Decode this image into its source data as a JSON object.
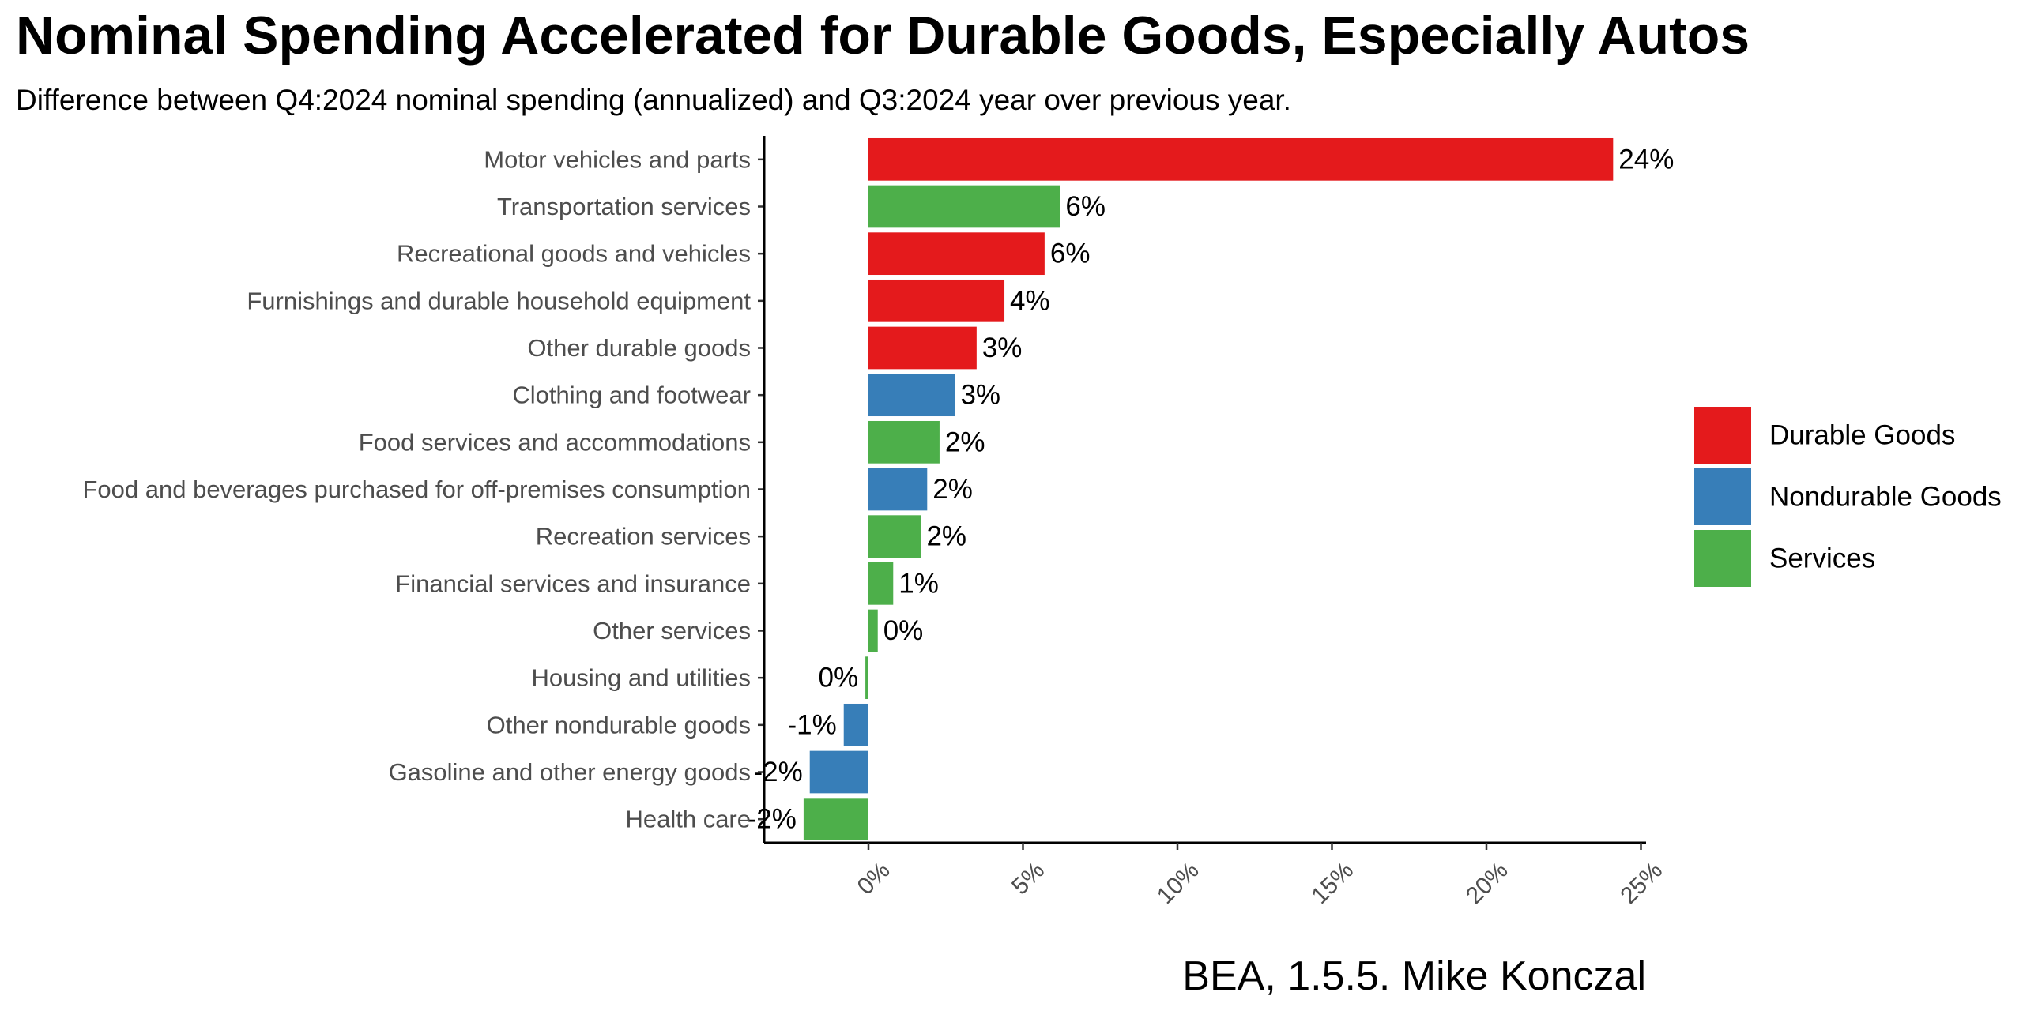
{
  "title": "Nominal Spending Accelerated for Durable Goods, Especially Autos",
  "subtitle": "Difference between Q4:2024 nominal spending (annualized) and Q3:2024 year over previous year.",
  "caption": "BEA, 1.5.5. Mike Konczal",
  "colors": {
    "Durable Goods": "#e41a1c",
    "Nondurable Goods": "#377eb8",
    "Services": "#4daf4a"
  },
  "legend": [
    "Durable Goods",
    "Nondurable Goods",
    "Services"
  ],
  "chart_data": {
    "type": "bar",
    "orientation": "horizontal",
    "categories": [
      "Motor vehicles and parts",
      "Transportation services",
      "Recreational goods and vehicles",
      "Furnishings and durable household equipment",
      "Other durable goods",
      "Clothing and footwear",
      "Food services and accommodations",
      "Food and beverages purchased for off-premises consumption",
      "Recreation services",
      "Financial services and insurance",
      "Other services",
      "Housing and utilities",
      "Other nondurable goods",
      "Gasoline and other energy goods",
      "Health care"
    ],
    "values": [
      24.1,
      6.2,
      5.7,
      4.4,
      3.5,
      2.8,
      2.3,
      1.9,
      1.7,
      0.8,
      0.3,
      -0.1,
      -0.8,
      -1.9,
      -2.1
    ],
    "groups": [
      "Durable Goods",
      "Services",
      "Durable Goods",
      "Durable Goods",
      "Durable Goods",
      "Nondurable Goods",
      "Services",
      "Nondurable Goods",
      "Services",
      "Services",
      "Services",
      "Services",
      "Nondurable Goods",
      "Nondurable Goods",
      "Services"
    ],
    "data_labels": [
      "24%",
      "6%",
      "6%",
      "4%",
      "3%",
      "3%",
      "2%",
      "2%",
      "2%",
      "1%",
      "0%",
      "0%",
      "-1%",
      "-2%",
      "-2%"
    ],
    "x_ticks": [
      0,
      5,
      10,
      15,
      20,
      25
    ],
    "x_tick_labels": [
      "0%",
      "5%",
      "10%",
      "15%",
      "20%",
      "25%"
    ],
    "xlim": [
      -3.4,
      25.3
    ],
    "grid": false,
    "legend_position": "right"
  }
}
